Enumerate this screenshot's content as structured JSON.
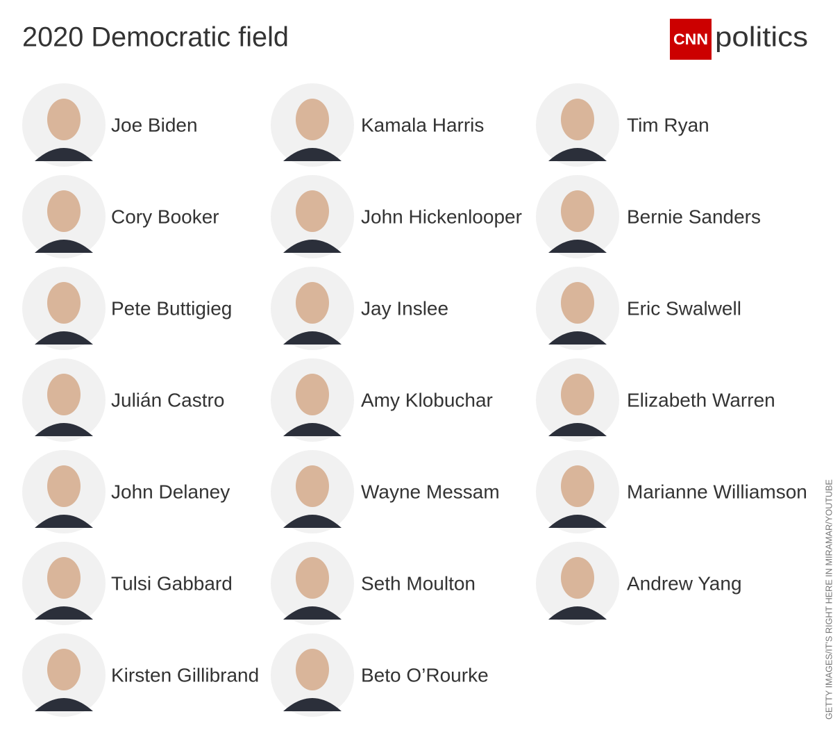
{
  "header": {
    "title": "2020 Democratic field",
    "logo": {
      "brand": "CNN",
      "section": "politics"
    }
  },
  "columns": [
    [
      "Joe Biden",
      "Cory Booker",
      "Pete Buttigieg",
      "Julián Castro",
      "John Delaney",
      "Tulsi Gabbard",
      "Kirsten Gillibrand"
    ],
    [
      "Kamala Harris",
      "John Hickenlooper",
      "Jay Inslee",
      "Amy Klobuchar",
      "Wayne Messam",
      "Seth Moulton",
      "Beto O’Rourke"
    ],
    [
      "Tim Ryan",
      "Bernie Sanders",
      "Eric Swalwell",
      "Elizabeth Warren",
      "Marianne Williamson",
      "Andrew Yang"
    ]
  ],
  "credit": "GETTY IMAGES/IT'S RIGHT HERE IN MIRAMAR/YOUTUBE"
}
